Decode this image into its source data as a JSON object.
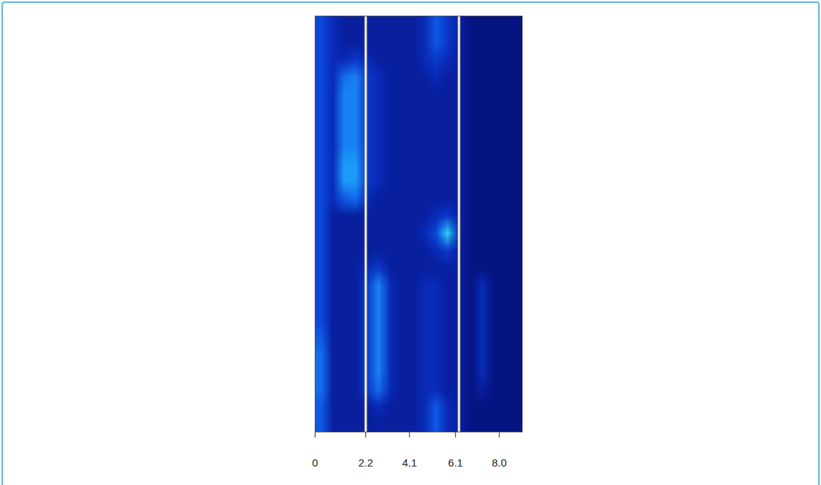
{
  "chart_data": {
    "type": "heatmap",
    "xlim": [
      0,
      9
    ],
    "xticks": [
      0,
      2.2,
      4.1,
      6.1,
      {
        "value": 8,
        "label": "8.0"
      }
    ],
    "tick_labels": "x",
    "vlines": [
      2.2,
      6.25
    ],
    "zlim": [
      0,
      10
    ],
    "cells": [
      [
        4,
        2,
        1,
        1,
        1,
        1,
        1,
        1,
        1,
        2,
        5,
        3,
        1,
        0,
        0,
        0,
        0,
        0
      ],
      [
        4,
        2,
        1,
        1,
        1,
        1,
        1,
        1,
        1,
        2,
        5,
        3,
        1,
        0,
        0,
        0,
        0,
        0
      ],
      [
        4,
        2,
        2,
        3,
        2,
        1,
        1,
        1,
        1,
        2,
        3,
        2,
        1,
        0,
        0,
        0,
        0,
        0
      ],
      [
        4,
        2,
        6,
        7,
        3,
        2,
        1,
        1,
        1,
        1,
        2,
        1,
        1,
        0,
        0,
        0,
        0,
        0
      ],
      [
        4,
        2,
        7,
        7,
        3,
        2,
        1,
        1,
        1,
        1,
        1,
        1,
        1,
        0,
        0,
        0,
        0,
        0
      ],
      [
        4,
        2,
        7,
        7,
        3,
        2,
        1,
        1,
        1,
        1,
        1,
        1,
        1,
        0,
        0,
        0,
        0,
        0
      ],
      [
        4,
        2,
        7,
        7,
        3,
        2,
        1,
        1,
        1,
        1,
        1,
        1,
        1,
        0,
        0,
        0,
        0,
        0
      ],
      [
        4,
        2,
        7,
        7,
        3,
        2,
        1,
        1,
        1,
        1,
        1,
        1,
        1,
        0,
        0,
        0,
        0,
        0
      ],
      [
        4,
        2,
        8,
        8,
        3,
        2,
        1,
        1,
        1,
        1,
        1,
        1,
        1,
        0,
        0,
        0,
        0,
        0
      ],
      [
        4,
        2,
        8,
        8,
        3,
        2,
        1,
        1,
        1,
        1,
        1,
        1,
        1,
        0,
        0,
        0,
        0,
        0
      ],
      [
        4,
        2,
        5,
        6,
        2,
        1,
        1,
        1,
        1,
        1,
        1,
        1,
        1,
        0,
        0,
        0,
        0,
        0
      ],
      [
        4,
        1,
        1,
        1,
        1,
        1,
        1,
        1,
        1,
        1,
        2,
        3,
        1,
        0,
        0,
        0,
        0,
        0
      ],
      [
        4,
        1,
        1,
        1,
        1,
        1,
        1,
        1,
        1,
        2,
        4,
        10,
        1,
        0,
        0,
        0,
        0,
        0
      ],
      [
        4,
        1,
        1,
        1,
        1,
        1,
        1,
        1,
        1,
        1,
        2,
        3,
        1,
        0,
        0,
        0,
        0,
        0
      ],
      [
        4,
        1,
        1,
        1,
        2,
        3,
        1,
        1,
        1,
        1,
        1,
        1,
        1,
        0,
        0,
        0,
        0,
        0
      ],
      [
        4,
        1,
        1,
        1,
        3,
        7,
        2,
        1,
        1,
        2,
        2,
        1,
        1,
        0,
        2,
        0,
        0,
        0
      ],
      [
        4,
        1,
        1,
        1,
        3,
        7,
        2,
        1,
        1,
        2,
        2,
        1,
        1,
        0,
        2,
        0,
        0,
        0
      ],
      [
        4,
        1,
        1,
        1,
        3,
        7,
        2,
        1,
        1,
        2,
        2,
        1,
        1,
        0,
        2,
        0,
        0,
        0
      ],
      [
        5,
        1,
        1,
        1,
        3,
        7,
        2,
        1,
        1,
        2,
        2,
        1,
        1,
        0,
        2,
        0,
        0,
        0
      ],
      [
        6,
        1,
        1,
        1,
        3,
        7,
        2,
        1,
        1,
        2,
        2,
        1,
        1,
        0,
        2,
        0,
        0,
        0
      ],
      [
        6,
        1,
        1,
        1,
        3,
        7,
        2,
        1,
        1,
        2,
        2,
        1,
        1,
        0,
        2,
        0,
        0,
        0
      ],
      [
        6,
        1,
        1,
        1,
        3,
        6,
        2,
        1,
        1,
        2,
        2,
        1,
        1,
        0,
        1,
        0,
        0,
        0
      ],
      [
        5,
        1,
        1,
        1,
        1,
        2,
        1,
        1,
        1,
        2,
        5,
        2,
        1,
        0,
        0,
        0,
        0,
        0
      ],
      [
        5,
        1,
        1,
        1,
        1,
        1,
        1,
        1,
        1,
        2,
        5,
        2,
        1,
        0,
        0,
        0,
        0,
        0
      ]
    ]
  }
}
